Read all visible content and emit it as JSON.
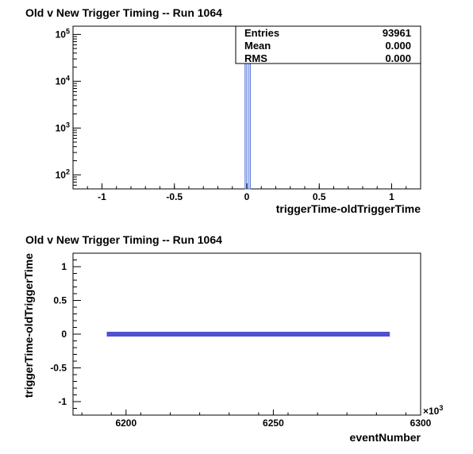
{
  "chart_data": [
    {
      "type": "bar",
      "title": "Old v New Trigger Timing -- Run 1064",
      "xlabel": "triggerTime-oldTriggerTime",
      "ylabel": "",
      "xlim": [
        -1.2,
        1.2
      ],
      "ylim": [
        50,
        150000
      ],
      "log_y": true,
      "grid": false,
      "x_ticks": [
        "-1",
        "-0.5",
        "0",
        "0.5",
        "1"
      ],
      "x_tick_values": [
        -1,
        -0.5,
        0,
        0.5,
        1
      ],
      "y_ticks": [
        {
          "base": "10",
          "exp": "2",
          "value": 100
        },
        {
          "base": "10",
          "exp": "3",
          "value": 1000
        },
        {
          "base": "10",
          "exp": "4",
          "value": 10000
        },
        {
          "base": "10",
          "exp": "5",
          "value": 100000
        }
      ],
      "bins": [
        {
          "x0": -0.012,
          "x1": 0.024,
          "value": 93961
        }
      ],
      "color": "#4a6fd6",
      "stats": {
        "legend_position": "top-right",
        "rows": [
          {
            "label": "Entries",
            "value": "93961"
          },
          {
            "label": "Mean",
            "value": "0.000"
          },
          {
            "label": "RMS",
            "value": "0.000"
          }
        ]
      }
    },
    {
      "type": "scatter",
      "title": "Old v New Trigger Timing -- Run 1064",
      "xlabel": "eventNumber",
      "ylabel": "triggerTime-oldTriggerTime",
      "xlim": [
        6182,
        6300
      ],
      "ylim": [
        -1.2,
        1.2
      ],
      "grid": false,
      "x_multiplier": "×10",
      "x_multiplier_exp": "3",
      "x_ticks": [
        "6200",
        "6250",
        "6300"
      ],
      "x_tick_values": [
        6200,
        6250,
        6300
      ],
      "y_ticks": [
        "1",
        "0.5",
        "0",
        "-0.5",
        "-1"
      ],
      "y_tick_values": [
        1,
        0.5,
        0,
        -0.5,
        -1
      ],
      "points_range": {
        "x_start": 6194,
        "x_end": 6289,
        "y": 0
      },
      "color": "#5050d0"
    }
  ]
}
